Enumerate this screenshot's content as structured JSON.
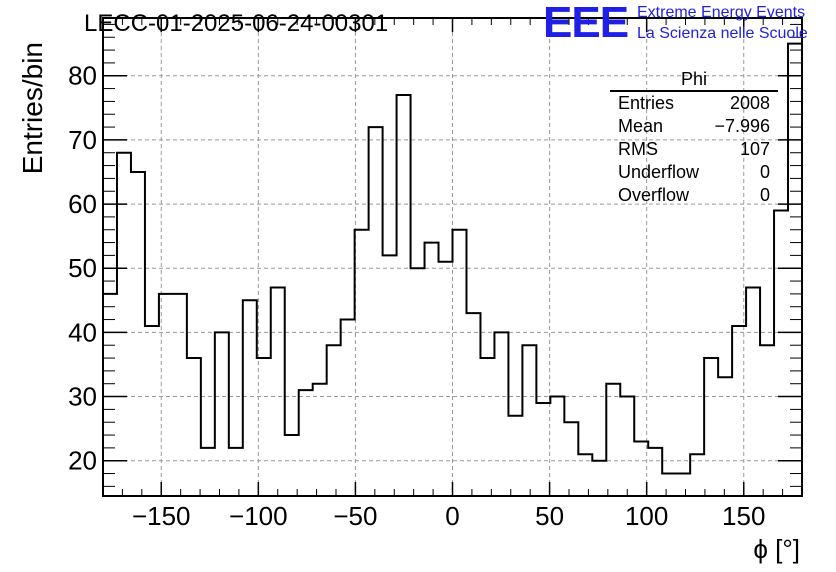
{
  "title": "LECC-01-2025-06-24-00301",
  "logo": {
    "mark": "EEE",
    "line1": "Extreme Energy Events",
    "line2": "La Scienza nelle Scuole",
    "color": "#1f1fe6"
  },
  "stats_box": {
    "title": "Phi",
    "rows": [
      {
        "label": "Entries",
        "value": "2008"
      },
      {
        "label": "Mean",
        "value": "−7.996"
      },
      {
        "label": "RMS",
        "value": "107"
      },
      {
        "label": "Underflow",
        "value": "0"
      },
      {
        "label": "Overflow",
        "value": "0"
      }
    ]
  },
  "chart_data": {
    "type": "histogram",
    "title": "LECC-01-2025-06-24-00301",
    "xlabel": "ϕ [°]",
    "ylabel": "Entries/bin",
    "xlim": [
      -180,
      180
    ],
    "ylim": [
      14.5,
      89
    ],
    "xticks": [
      -150,
      -100,
      -50,
      0,
      50,
      100,
      150
    ],
    "yticks": [
      20,
      30,
      40,
      50,
      60,
      70,
      80
    ],
    "grid": true,
    "bin_edges_start": -180,
    "bin_width": 7.2,
    "values": [
      46,
      68,
      65,
      41,
      46,
      46,
      36,
      22,
      40,
      22,
      45,
      36,
      47,
      24,
      31,
      32,
      38,
      42,
      56,
      72,
      52,
      77,
      50,
      54,
      51,
      56,
      43,
      36,
      40,
      27,
      38,
      29,
      30,
      26,
      21,
      20,
      32,
      30,
      23,
      22,
      18,
      18,
      21,
      36,
      33,
      41,
      47,
      38,
      59,
      85
    ]
  }
}
